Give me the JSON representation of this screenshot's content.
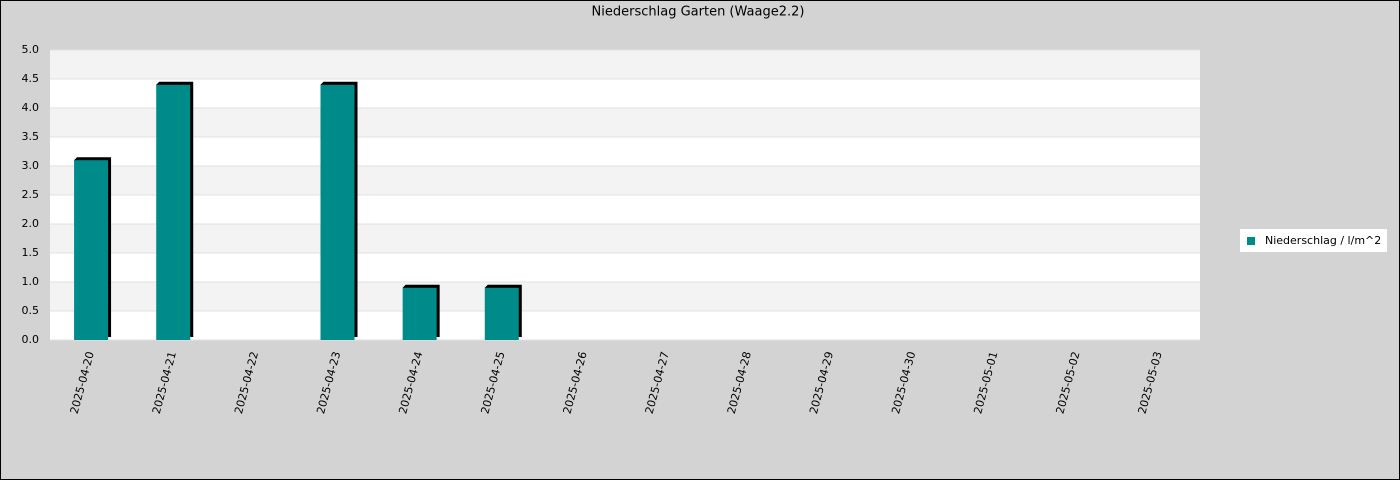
{
  "chart_data": {
    "type": "bar",
    "title": "Niederschlag Garten (Waage2.2)",
    "categories": [
      "2025-04-20",
      "2025-04-21",
      "2025-04-22",
      "2025-04-23",
      "2025-04-24",
      "2025-04-25",
      "2025-04-26",
      "2025-04-27",
      "2025-04-28",
      "2025-04-29",
      "2025-04-30",
      "2025-05-01",
      "2025-05-02",
      "2025-05-03"
    ],
    "series": [
      {
        "name": "Niederschlag / l/m^2",
        "color": "#008b8b",
        "values": [
          3.1,
          4.4,
          0,
          4.4,
          0.9,
          0.9,
          0,
          0,
          0,
          0,
          0,
          0,
          0,
          0
        ]
      }
    ],
    "ylim": [
      0,
      5
    ],
    "yticks": [
      {
        "value": 0,
        "label": "0.0"
      },
      0.5,
      {
        "value": 1,
        "label": "1.0"
      },
      1.5,
      {
        "value": 2,
        "label": "2.0"
      },
      2.5,
      {
        "value": 3,
        "label": "3.0"
      },
      3.5,
      {
        "value": 4,
        "label": "4.0"
      },
      4.5,
      {
        "value": 5,
        "label": "5.0"
      }
    ],
    "grid": true,
    "legend": "right"
  }
}
